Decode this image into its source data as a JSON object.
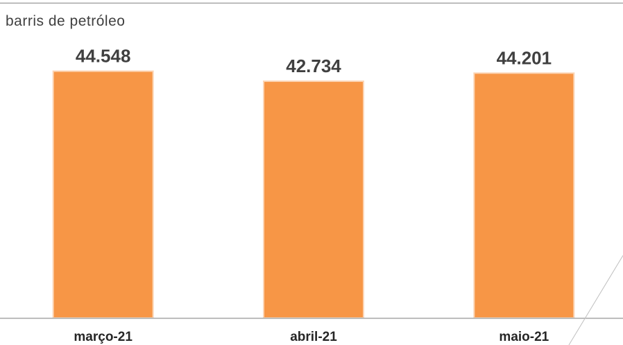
{
  "chart_data": {
    "type": "bar",
    "unit_label": "barris de petróleo",
    "categories": [
      "março-21",
      "abril-21",
      "maio-21"
    ],
    "values": [
      44548,
      42734,
      44201
    ],
    "data_labels": [
      "44.548",
      "42.734",
      "44.201"
    ],
    "ylim": [
      0,
      47500
    ],
    "grid": false,
    "bar_color": "#F79646",
    "bar_edge_color": "#FCD5B5",
    "axis_color": "#A6A6A6",
    "text_color": "#404040"
  }
}
